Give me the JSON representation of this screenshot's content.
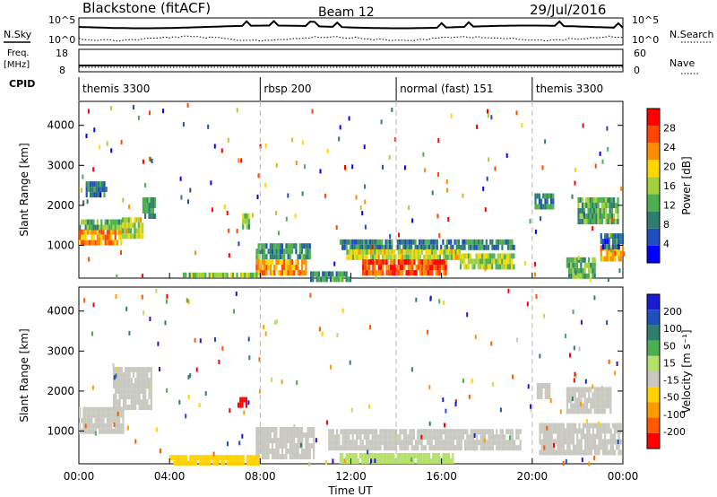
{
  "header": {
    "radar": "Blackstone (fitACF)",
    "beam": "Beam 12",
    "date": "29/Jul/2016"
  },
  "strip_labels": {
    "nsky": "N.Sky",
    "nsearch": "N.Search",
    "freq_line1": "Freq.",
    "freq_line2": "[MHz]",
    "nave": "Nave",
    "cpid": "CPID",
    "left_top": "10^5",
    "left_bottom": "10^0",
    "right_top": "10^5",
    "right_bottom": "10^0",
    "freq_top": "18",
    "freq_bottom": "8",
    "nave_top": "60",
    "nave_bottom": "0"
  },
  "cpid_segments": [
    {
      "label": "themis 3300",
      "start_hour": 0
    },
    {
      "label": "rbsp 200",
      "start_hour": 8
    },
    {
      "label": "normal (fast) 151",
      "start_hour": 14
    },
    {
      "label": "themis 3300",
      "start_hour": 20
    }
  ],
  "x_axis": {
    "label": "Time UT",
    "ticks": [
      "00:00",
      "04:00",
      "08:00",
      "12:00",
      "16:00",
      "20:00",
      "00:00"
    ],
    "tick_hours": [
      0,
      4,
      8,
      12,
      16,
      20,
      24
    ]
  },
  "y_axis_ticks": [
    "1000",
    "2000",
    "3000",
    "4000"
  ],
  "colors": {
    "power": [
      "#0000ff",
      "#1f4fbf",
      "#2e7d6f",
      "#4caf50",
      "#a3d13a",
      "#ffd700",
      "#ff8c00",
      "#ff4500",
      "#ff0000"
    ],
    "velocity": [
      "#ff0000",
      "#ff5a00",
      "#ff9b00",
      "#ffd200",
      "#c8c8c0",
      "#b5e06a",
      "#4caf50",
      "#2e7d6f",
      "#1f4fbf",
      "#1a1ad0"
    ]
  },
  "chart_data": [
    {
      "type": "heatmap",
      "title": "Power",
      "xlabel": "",
      "ylabel": "Slant Range [km]",
      "xlim": [
        0,
        24
      ],
      "ylim": [
        180,
        4600
      ],
      "colorbar_label": "Power [dB]",
      "colorbar_ticks": [
        "4",
        "8",
        "12",
        "16",
        "20",
        "24",
        "28"
      ],
      "regions": [
        {
          "t": [
            0.0,
            1.9
          ],
          "r": [
            1050,
            1400
          ],
          "v": 26
        },
        {
          "t": [
            0.0,
            1.9
          ],
          "r": [
            1400,
            1650
          ],
          "v": 15
        },
        {
          "t": [
            1.9,
            2.8
          ],
          "r": [
            1250,
            1700
          ],
          "v": 20
        },
        {
          "t": [
            2.8,
            3.4
          ],
          "r": [
            1700,
            2200
          ],
          "v": 12
        },
        {
          "t": [
            0.3,
            1.2
          ],
          "r": [
            2200,
            2600
          ],
          "v": 8
        },
        {
          "t": [
            7.2,
            7.5
          ],
          "r": [
            1500,
            1800
          ],
          "v": 16
        },
        {
          "t": [
            7.8,
            10.2
          ],
          "r": [
            650,
            1050
          ],
          "v": 12
        },
        {
          "t": [
            7.8,
            10.0
          ],
          "r": [
            350,
            650
          ],
          "v": 26
        },
        {
          "t": [
            4.5,
            8.0
          ],
          "r": [
            200,
            320
          ],
          "v": 16
        },
        {
          "t": [
            11.5,
            19.2
          ],
          "r": [
            900,
            1150
          ],
          "v": 10
        },
        {
          "t": [
            11.8,
            16.8
          ],
          "r": [
            650,
            900
          ],
          "v": 20
        },
        {
          "t": [
            12.5,
            16.2
          ],
          "r": [
            300,
            650
          ],
          "v": 30
        },
        {
          "t": [
            16.8,
            19.2
          ],
          "r": [
            500,
            800
          ],
          "v": 18
        },
        {
          "t": [
            10.2,
            12.0
          ],
          "r": [
            200,
            350
          ],
          "v": 12
        },
        {
          "t": [
            21.5,
            22.8
          ],
          "r": [
            200,
            700
          ],
          "v": 14
        },
        {
          "t": [
            23.0,
            24.0
          ],
          "r": [
            600,
            1000
          ],
          "v": 24
        },
        {
          "t": [
            23.0,
            24.0
          ],
          "r": [
            1000,
            1300
          ],
          "v": 8
        },
        {
          "t": [
            22.0,
            23.8
          ],
          "r": [
            1600,
            2200
          ],
          "v": 14
        },
        {
          "t": [
            20.1,
            20.9
          ],
          "r": [
            1900,
            2300
          ],
          "v": 10
        }
      ]
    },
    {
      "type": "heatmap",
      "title": "Velocity",
      "xlabel": "Time UT",
      "ylabel": "Slant Range [km]",
      "xlim": [
        0,
        24
      ],
      "ylim": [
        180,
        4600
      ],
      "colorbar_label": "Velocity [m s⁻¹]",
      "colorbar_ticks": [
        "-200",
        "-100",
        "-50",
        "-15",
        "15",
        "50",
        "100",
        "200"
      ],
      "regions": [
        {
          "t": [
            0.0,
            2.0
          ],
          "r": [
            1000,
            1600
          ],
          "v": 0
        },
        {
          "t": [
            1.5,
            3.2
          ],
          "r": [
            1600,
            2600
          ],
          "v": 0
        },
        {
          "t": [
            7.0,
            7.4
          ],
          "r": [
            1650,
            1850
          ],
          "v": -230
        },
        {
          "t": [
            7.8,
            10.4
          ],
          "r": [
            400,
            1100
          ],
          "v": 0
        },
        {
          "t": [
            11.0,
            19.5
          ],
          "r": [
            600,
            1050
          ],
          "v": 0
        },
        {
          "t": [
            4.0,
            8.0
          ],
          "r": [
            200,
            400
          ],
          "v": -40
        },
        {
          "t": [
            11.5,
            16.5
          ],
          "r": [
            200,
            450
          ],
          "v": 30
        },
        {
          "t": [
            20.3,
            23.9
          ],
          "r": [
            400,
            1200
          ],
          "v": 0
        },
        {
          "t": [
            21.5,
            23.5
          ],
          "r": [
            1500,
            2100
          ],
          "v": 0
        },
        {
          "t": [
            20.2,
            20.8
          ],
          "r": [
            1900,
            2200
          ],
          "v": 0
        }
      ]
    }
  ]
}
